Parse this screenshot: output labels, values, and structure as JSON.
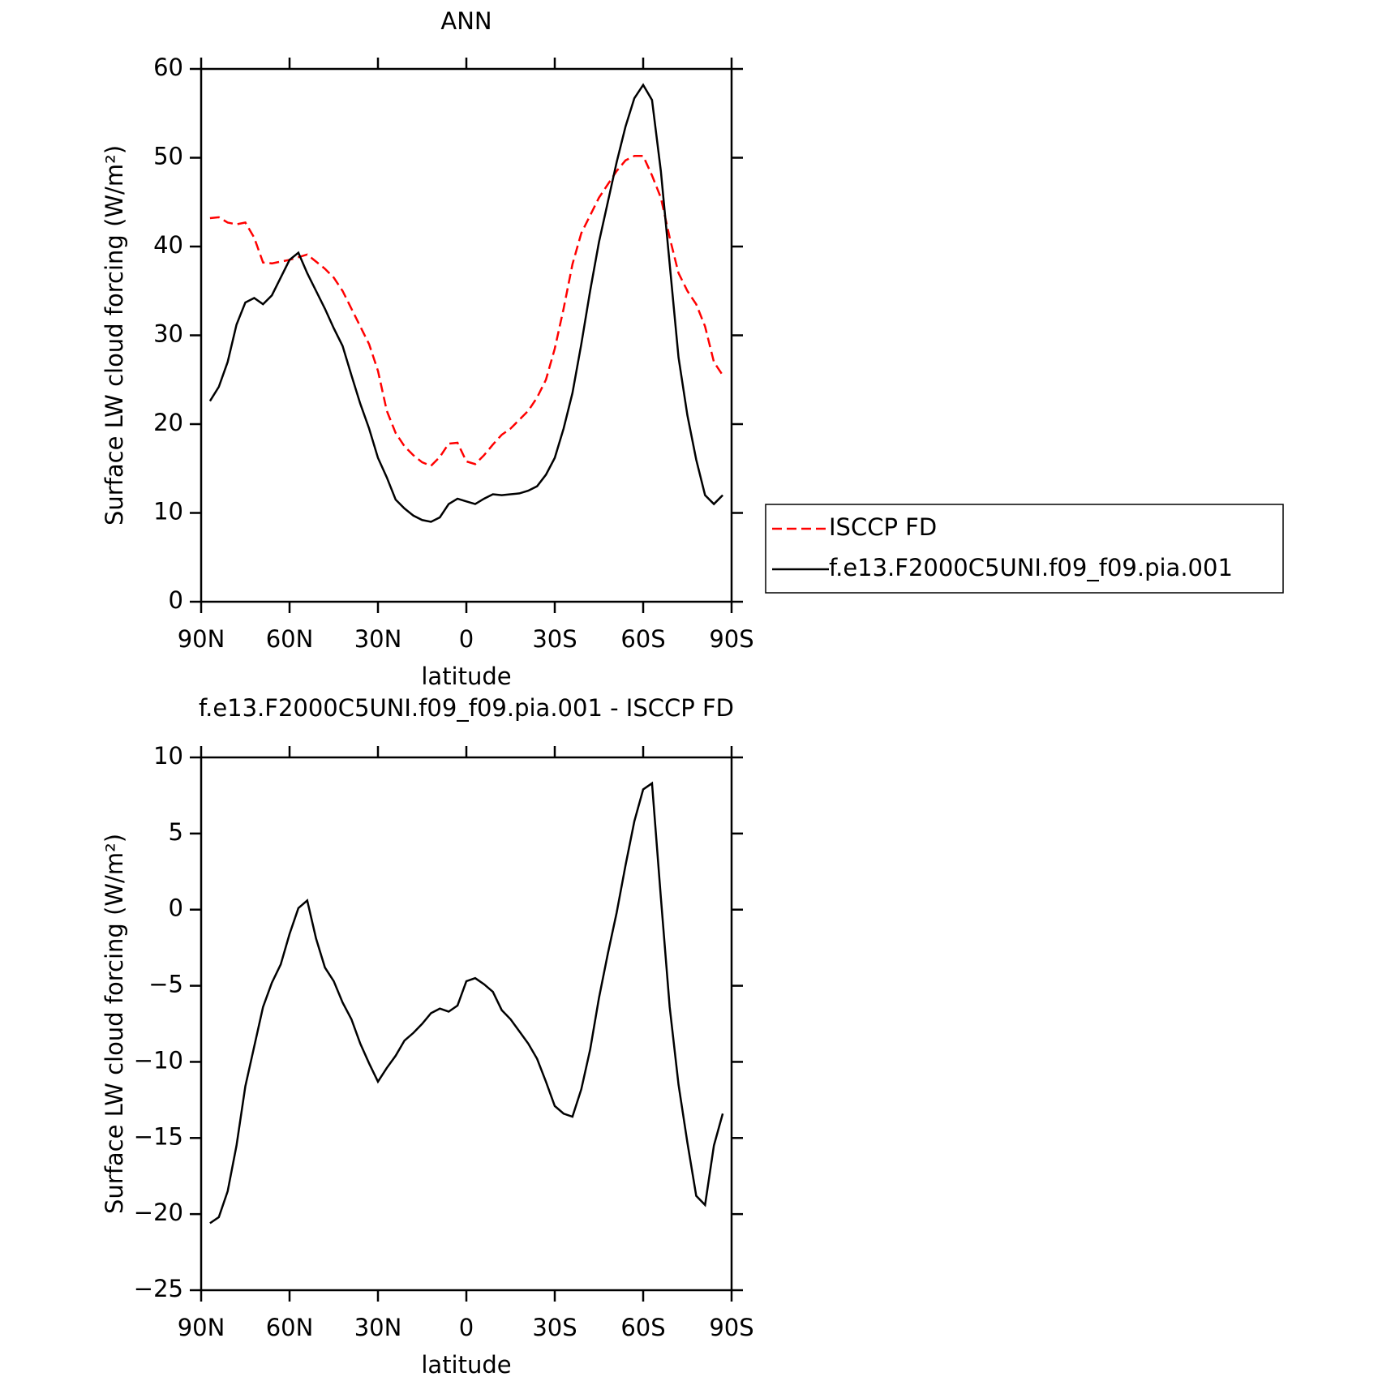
{
  "chart_data": [
    {
      "type": "line",
      "title": "ANN",
      "xlabel": "latitude",
      "ylabel": "Surface LW cloud forcing (W/m²)",
      "x": [
        87,
        84,
        81,
        78,
        75,
        72,
        69,
        66,
        63,
        60,
        57,
        54,
        51,
        48,
        45,
        42,
        39,
        36,
        33,
        30,
        27,
        24,
        21,
        18,
        15,
        12,
        9,
        6,
        3,
        0,
        -3,
        -6,
        -9,
        -12,
        -15,
        -18,
        -21,
        -24,
        -27,
        -30,
        -33,
        -36,
        -39,
        -42,
        -45,
        -48,
        -51,
        -54,
        -57,
        -60,
        -63,
        -66,
        -69,
        -72,
        -75,
        -78,
        -81,
        -84,
        -87
      ],
      "xlim": [
        90,
        -90
      ],
      "xticks": [
        {
          "value": 90,
          "label": "90N"
        },
        {
          "value": 60,
          "label": "60N"
        },
        {
          "value": 30,
          "label": "30N"
        },
        0,
        {
          "value": -30,
          "label": "30S"
        },
        {
          "value": -60,
          "label": "60S"
        },
        {
          "value": -90,
          "label": "90S"
        }
      ],
      "ylim": [
        0,
        60
      ],
      "yticks": [
        0,
        10,
        20,
        30,
        40,
        50,
        60
      ],
      "series": [
        {
          "name": "ISCCP FD",
          "color": "#ff0000",
          "line_style": "dashed",
          "values": [
            43.2,
            43.3,
            42.7,
            42.5,
            42.7,
            41,
            38.2,
            38.1,
            38.3,
            38.5,
            38.8,
            39.1,
            38.3,
            37.5,
            36.5,
            35,
            33,
            31,
            29,
            26,
            21.5,
            19,
            17.5,
            16.5,
            15.7,
            15.3,
            16.3,
            17.8,
            17.9,
            15.8,
            15.5,
            16.5,
            17.7,
            18.8,
            19.5,
            20.5,
            21.5,
            23,
            25,
            28.5,
            33,
            38,
            41.5,
            43.5,
            45.5,
            47,
            48.5,
            49.7,
            50.2,
            50.2,
            48,
            45.5,
            41,
            37,
            35,
            33.5,
            31,
            27,
            25.5
          ]
        },
        {
          "name": "f.e13.F2000C5UNI.f09_f09.pia.001",
          "color": "#000000",
          "line_style": "solid",
          "values": [
            22.6,
            24.2,
            27,
            31.2,
            33.7,
            34.2,
            33.5,
            34.5,
            36.5,
            38.5,
            39.3,
            37,
            35,
            33,
            30.8,
            28.8,
            25.5,
            22.3,
            19.5,
            16.2,
            14,
            11.5,
            10.5,
            9.7,
            9.2,
            9,
            9.5,
            11,
            11.6,
            11.3,
            11,
            11.6,
            12.1,
            12,
            12.1,
            12.2,
            12.5,
            13,
            14.3,
            16.2,
            19.5,
            23.5,
            29,
            35,
            40.5,
            45,
            49.5,
            53.5,
            56.7,
            58.2,
            56.5,
            48.5,
            38,
            27.5,
            21,
            16,
            12,
            11,
            12
          ]
        }
      ]
    },
    {
      "type": "line",
      "title": "f.e13.F2000C5UNI.f09_f09.pia.001 - ISCCP FD",
      "xlabel": "latitude",
      "ylabel": "Surface LW cloud forcing (W/m²)",
      "x": [
        87,
        84,
        81,
        78,
        75,
        72,
        69,
        66,
        63,
        60,
        57,
        54,
        51,
        48,
        45,
        42,
        39,
        36,
        33,
        30,
        27,
        24,
        21,
        18,
        15,
        12,
        9,
        6,
        3,
        0,
        -3,
        -6,
        -9,
        -12,
        -15,
        -18,
        -21,
        -24,
        -27,
        -30,
        -33,
        -36,
        -39,
        -42,
        -45,
        -48,
        -51,
        -54,
        -57,
        -60,
        -63,
        -66,
        -69,
        -72,
        -75,
        -78,
        -81,
        -84,
        -87
      ],
      "xlim": [
        90,
        -90
      ],
      "xticks": [
        {
          "value": 90,
          "label": "90N"
        },
        {
          "value": 60,
          "label": "60N"
        },
        {
          "value": 30,
          "label": "30N"
        },
        0,
        {
          "value": -30,
          "label": "30S"
        },
        {
          "value": -60,
          "label": "60S"
        },
        {
          "value": -90,
          "label": "90S"
        }
      ],
      "ylim": [
        -25,
        10
      ],
      "yticks": [
        {
          "value": -25,
          "label": "−25"
        },
        {
          "value": -20,
          "label": "−20"
        },
        {
          "value": -15,
          "label": "−15"
        },
        {
          "value": -10,
          "label": "−10"
        },
        {
          "value": -5,
          "label": "−5"
        },
        0,
        5,
        10
      ],
      "series": [
        {
          "color": "#000000",
          "line_style": "solid",
          "values": [
            -20.6,
            -20.2,
            -18.5,
            -15.5,
            -11.6,
            -9,
            -6.4,
            -4.8,
            -3.6,
            -1.6,
            0.1,
            0.6,
            -1.9,
            -3.8,
            -4.7,
            -6.1,
            -7.2,
            -8.8,
            -10.1,
            -11.3,
            -10.4,
            -9.6,
            -8.6,
            -8.1,
            -7.5,
            -6.8,
            -6.5,
            -6.7,
            -6.3,
            -4.7,
            -4.5,
            -4.9,
            -5.4,
            -6.6,
            -7.2,
            -8,
            -8.8,
            -9.8,
            -11.3,
            -12.9,
            -13.4,
            -13.6,
            -11.8,
            -9.2,
            -5.8,
            -2.9,
            -0.2,
            2.9,
            5.8,
            7.9,
            8.3,
            0.8,
            -6.4,
            -11.5,
            -15.3,
            -18.8,
            -19.4,
            -15.5,
            -13.4
          ]
        }
      ]
    }
  ]
}
